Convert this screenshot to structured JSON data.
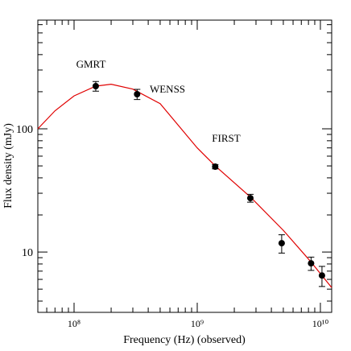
{
  "chart_data": {
    "type": "scatter",
    "xlabel": "Frequency (Hz) (observed)",
    "ylabel": "Flux density (mJy)",
    "log_x": true,
    "log_y": true,
    "xlim": [
      50800000.0,
      12350000000.0
    ],
    "ylim": [
      3.24,
      762
    ],
    "xticks": [
      {
        "value": 100000000.0,
        "label": "10⁸"
      },
      {
        "value": 1000000000.0,
        "label": "10⁹"
      },
      {
        "value": 10000000000.0,
        "label": "10¹⁰"
      }
    ],
    "yticks": [
      10,
      100
    ],
    "xminorticks": [
      60000000.0,
      70000000.0,
      80000000.0,
      90000000.0,
      200000000.0,
      300000000.0,
      400000000.0,
      500000000.0,
      600000000.0,
      700000000.0,
      800000000.0,
      900000000.0,
      2000000000.0,
      3000000000.0,
      4000000000.0,
      5000000000.0,
      6000000000.0,
      7000000000.0,
      8000000000.0,
      9000000000.0
    ],
    "yminorticks": [
      4,
      5,
      6,
      7,
      8,
      9,
      20,
      30,
      40,
      50,
      60,
      70,
      80,
      90,
      200,
      300,
      400,
      500,
      600,
      700
    ],
    "points": {
      "color": "#000000",
      "x": [
        150000000.0,
        325000000.0,
        1400000000.0,
        2700000000.0,
        4850000000.0,
        8400000000.0,
        10300000000.0
      ],
      "values": [
        222,
        191,
        49.3,
        27.4,
        11.8,
        8.1,
        6.45
      ],
      "errors": [
        20,
        18,
        2,
        2,
        2,
        1,
        1.2
      ]
    },
    "curve": {
      "color": "#e00000",
      "x": [
        50800000.0,
        70000000.0,
        100000000.0,
        150000000.0,
        200000000.0,
        300000000.0,
        500000000.0,
        1000000000.0,
        1400000000.0,
        2700000000.0,
        5000000000.0,
        8400000000.0,
        12350000000.0
      ],
      "values": [
        100,
        140,
        185,
        222,
        230,
        210,
        160,
        70,
        50,
        28,
        15,
        8.3,
        5.15
      ]
    },
    "annotations": [
      "GMRT",
      "WENSS",
      "FIRST"
    ]
  }
}
